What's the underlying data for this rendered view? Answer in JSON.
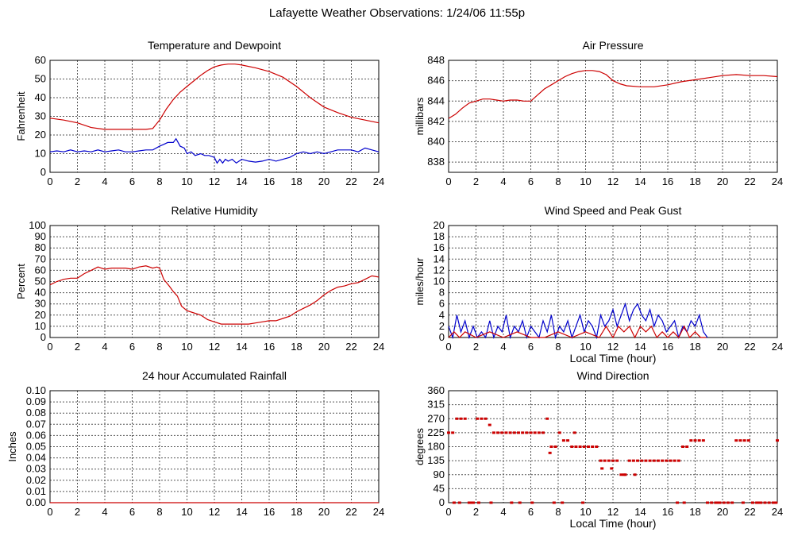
{
  "page_title": "Lafayette Weather Observations: 1/24/06 11:55p",
  "chart_data": [
    {
      "id": "temp",
      "type": "line",
      "title": "Temperature and Dewpoint",
      "ylabel": "Fahrenheit",
      "xlabel": "",
      "xlim": [
        0,
        24
      ],
      "ylim": [
        0,
        60
      ],
      "xticks": [
        0,
        2,
        4,
        6,
        8,
        10,
        12,
        14,
        16,
        18,
        20,
        22,
        24
      ],
      "yticks": [
        0,
        10,
        20,
        30,
        40,
        50,
        60
      ],
      "grid": true,
      "series": [
        {
          "color": "#cc0000",
          "x": [
            0,
            1,
            2,
            3,
            4,
            5,
            6,
            7,
            7.5,
            8,
            8.5,
            9,
            9.5,
            10,
            10.5,
            11,
            11.5,
            12,
            12.5,
            13,
            13.5,
            14,
            15,
            16,
            17,
            18,
            19,
            20,
            21,
            22,
            23,
            24
          ],
          "y": [
            29,
            28,
            26.5,
            24,
            23,
            23,
            23,
            23,
            23.5,
            28,
            34,
            39,
            43,
            46,
            49,
            52,
            54.5,
            56.5,
            57.5,
            58,
            58,
            57.5,
            56,
            54,
            51,
            46,
            40,
            35,
            32,
            29.5,
            28,
            26.5
          ]
        },
        {
          "color": "#0000cc",
          "x": [
            0,
            0.5,
            1,
            1.5,
            2,
            2.5,
            3,
            3.5,
            4,
            4.5,
            5,
            5.5,
            6,
            6.5,
            7,
            7.5,
            8,
            8.3,
            8.6,
            9,
            9.2,
            9.5,
            9.8,
            10,
            10.3,
            10.6,
            11,
            11.3,
            11.6,
            12,
            12.2,
            12.4,
            12.6,
            12.8,
            13,
            13.3,
            13.6,
            14,
            14.5,
            15,
            15.5,
            16,
            16.5,
            17,
            17.5,
            18,
            18.5,
            19,
            19.5,
            20,
            20.5,
            21,
            21.5,
            22,
            22.5,
            23,
            23.5,
            24
          ],
          "y": [
            11,
            11.5,
            11,
            12,
            11,
            11.5,
            11,
            12,
            11,
            11.5,
            12,
            11,
            11,
            11.5,
            12,
            12,
            14,
            15,
            16,
            16,
            18,
            14,
            13,
            10,
            11,
            9,
            10,
            9,
            9,
            8,
            5,
            7,
            5,
            7,
            6,
            7,
            5,
            7,
            6,
            5.5,
            6,
            7,
            6,
            7,
            8,
            10,
            11,
            10,
            11,
            10,
            11,
            12,
            12,
            12,
            11,
            13,
            12,
            11
          ]
        }
      ]
    },
    {
      "id": "pressure",
      "type": "line",
      "title": "Air Pressure",
      "ylabel": "millibars",
      "xlabel": "",
      "xlim": [
        0,
        24
      ],
      "ylim": [
        837,
        848
      ],
      "xticks": [
        0,
        2,
        4,
        6,
        8,
        10,
        12,
        14,
        16,
        18,
        20,
        22,
        24
      ],
      "yticks": [
        838,
        840,
        842,
        844,
        846,
        848
      ],
      "grid": true,
      "series": [
        {
          "color": "#cc0000",
          "x": [
            0,
            0.5,
            1,
            1.5,
            2,
            2.5,
            3,
            3.5,
            4,
            4.5,
            5,
            5.5,
            6,
            6.5,
            7,
            7.5,
            8,
            8.5,
            9,
            9.5,
            10,
            10.5,
            11,
            11.5,
            12,
            12.5,
            13,
            14,
            15,
            16,
            17,
            18,
            19,
            20,
            21,
            22,
            23,
            24
          ],
          "y": [
            842.3,
            842.7,
            843.3,
            843.8,
            844,
            844.2,
            844.2,
            844.1,
            844,
            844.1,
            844.1,
            844,
            844,
            844.6,
            845.2,
            845.6,
            846,
            846.4,
            846.7,
            846.9,
            847,
            847,
            846.9,
            846.6,
            846,
            845.7,
            845.5,
            845.4,
            845.4,
            845.6,
            845.9,
            846.1,
            846.3,
            846.5,
            846.6,
            846.5,
            846.5,
            846.4
          ]
        }
      ]
    },
    {
      "id": "humidity",
      "type": "line",
      "title": "Relative Humidity",
      "ylabel": "Percent",
      "xlabel": "",
      "xlim": [
        0,
        24
      ],
      "ylim": [
        0,
        100
      ],
      "xticks": [
        0,
        2,
        4,
        6,
        8,
        10,
        12,
        14,
        16,
        18,
        20,
        22,
        24
      ],
      "yticks": [
        0,
        10,
        20,
        30,
        40,
        50,
        60,
        70,
        80,
        90,
        100
      ],
      "grid": true,
      "series": [
        {
          "color": "#cc0000",
          "x": [
            0,
            0.5,
            1,
            1.5,
            2,
            2.5,
            3,
            3.5,
            4,
            4.5,
            5,
            5.5,
            6,
            6.5,
            7,
            7.5,
            7.8,
            8,
            8.3,
            8.7,
            9,
            9.3,
            9.6,
            10,
            10.5,
            11,
            11.5,
            12,
            12.5,
            13,
            13.5,
            14,
            14.5,
            15,
            15.5,
            16,
            16.5,
            17,
            17.5,
            18,
            18.5,
            19,
            19.5,
            20,
            20.5,
            21,
            21.5,
            22,
            22.5,
            23,
            23.5,
            24
          ],
          "y": [
            47,
            50,
            52,
            53,
            53,
            57,
            60,
            63,
            61,
            62,
            62,
            62,
            61,
            63,
            64,
            62,
            63,
            62,
            52,
            46,
            41,
            37,
            28,
            24,
            22,
            20,
            16,
            14,
            12,
            12,
            12,
            12,
            12,
            13,
            14,
            15,
            15,
            17,
            19,
            23,
            26,
            29,
            33,
            38,
            42,
            45,
            46,
            48,
            49,
            52,
            55,
            54
          ]
        }
      ]
    },
    {
      "id": "wind",
      "type": "line",
      "title": "Wind Speed and Peak Gust",
      "ylabel": "miles/hour",
      "xlabel": "Local Time (hour)",
      "xlim": [
        0,
        24
      ],
      "ylim": [
        0,
        20
      ],
      "xticks": [
        0,
        2,
        4,
        6,
        8,
        10,
        12,
        14,
        16,
        18,
        20,
        22,
        24
      ],
      "yticks": [
        0,
        2,
        4,
        6,
        8,
        10,
        12,
        14,
        16,
        18,
        20
      ],
      "grid": true,
      "series": [
        {
          "color": "#0000cc",
          "x": [
            0,
            0.3,
            0.6,
            0.9,
            1.2,
            1.5,
            1.8,
            2.1,
            2.4,
            2.7,
            3,
            3.3,
            3.6,
            3.9,
            4.2,
            4.5,
            4.8,
            5.1,
            5.4,
            5.7,
            6,
            6.3,
            6.6,
            6.9,
            7.2,
            7.5,
            7.8,
            8.1,
            8.4,
            8.7,
            9,
            9.3,
            9.6,
            9.9,
            10.2,
            10.5,
            10.8,
            11.1,
            11.4,
            11.7,
            12,
            12.3,
            12.6,
            12.9,
            13.2,
            13.5,
            13.8,
            14.1,
            14.4,
            14.7,
            15,
            15.3,
            15.6,
            15.9,
            16.2,
            16.5,
            16.8,
            17.1,
            17.4,
            17.7,
            18,
            18.3,
            18.6,
            18.9
          ],
          "y": [
            2,
            0,
            4,
            1,
            3,
            0,
            2,
            0,
            1,
            0,
            3,
            0,
            2,
            1,
            4,
            0,
            2,
            1,
            3,
            0,
            2,
            1,
            0,
            3,
            1,
            4,
            0,
            2,
            1,
            3,
            0,
            2,
            4,
            1,
            3,
            2,
            0,
            4,
            2,
            3,
            5,
            2,
            4,
            6,
            3,
            5,
            6,
            4,
            3,
            5,
            2,
            4,
            3,
            1,
            2,
            3,
            0,
            2,
            1,
            3,
            2,
            4,
            1,
            0
          ]
        },
        {
          "color": "#cc0000",
          "x": [
            0,
            0.4,
            0.8,
            1.2,
            2,
            3,
            4,
            5,
            6,
            7,
            8,
            9,
            10,
            11,
            11.5,
            12,
            12.4,
            12.8,
            13.2,
            13.6,
            14,
            14.4,
            14.8,
            15.2,
            15.6,
            16,
            16.4,
            16.8,
            17.2,
            17.6,
            18,
            18.4,
            18.8
          ],
          "y": [
            0,
            1,
            0,
            1,
            0,
            1,
            0,
            1,
            0,
            0,
            1,
            0,
            1,
            0,
            2,
            0,
            2,
            1,
            2,
            0,
            2,
            1,
            2,
            0,
            1,
            0,
            1,
            0,
            2,
            0,
            1,
            0,
            0
          ]
        }
      ]
    },
    {
      "id": "rain",
      "type": "line",
      "title": "24 hour Accumulated Rainfall",
      "ylabel": "Inches",
      "xlabel": "",
      "xlim": [
        0,
        24
      ],
      "ylim": [
        0,
        0.1
      ],
      "xticks": [
        0,
        2,
        4,
        6,
        8,
        10,
        12,
        14,
        16,
        18,
        20,
        22,
        24
      ],
      "yticks": [
        "0.00",
        "0.01",
        "0.02",
        "0.03",
        "0.04",
        "0.05",
        "0.06",
        "0.07",
        "0.08",
        "0.09",
        "0.10"
      ],
      "grid": true,
      "series": [
        {
          "color": "#cc0000",
          "x": [
            0,
            24
          ],
          "y": [
            0,
            0
          ]
        }
      ]
    },
    {
      "id": "direction",
      "type": "scatter",
      "title": "Wind Direction",
      "ylabel": "degrees",
      "xlabel": "Local Time (hour)",
      "xlim": [
        0,
        24
      ],
      "ylim": [
        0,
        360
      ],
      "xticks": [
        0,
        2,
        4,
        6,
        8,
        10,
        12,
        14,
        16,
        18,
        20,
        22,
        24
      ],
      "yticks": [
        0,
        45,
        90,
        135,
        180,
        225,
        270,
        315,
        360
      ],
      "grid": true,
      "series": [
        {
          "color": "#cc0000",
          "x": [
            0,
            0.3,
            0.6,
            0.9,
            1.2,
            1.5,
            1.8,
            2.1,
            2.4,
            2.7,
            3,
            3.3,
            3.6,
            3.9,
            4.2,
            4.5,
            4.8,
            5.1,
            5.4,
            5.7,
            6,
            6.3,
            6.6,
            6.9,
            7.2,
            7.5,
            7.8,
            8.1,
            8.4,
            8.7,
            9,
            9.3,
            9.6,
            9.9,
            10.2,
            10.5,
            10.8,
            11.1,
            11.4,
            11.7,
            12,
            12.3,
            12.6,
            12.9,
            13.2,
            13.5,
            13.8,
            14.1,
            14.4,
            14.7,
            15,
            15.3,
            15.6,
            15.9,
            16.2,
            16.5,
            16.8,
            17.1,
            17.4,
            17.7,
            18,
            18.3,
            18.6,
            18.9,
            19.2,
            19.5,
            19.8,
            20.1,
            20.4,
            20.7,
            21,
            21.3,
            21.6,
            21.9,
            22.2,
            22.5,
            22.8,
            23.1,
            23.4,
            23.7,
            24,
            0.4,
            0.8,
            1.6,
            2.2,
            3.1,
            4.6,
            5.2,
            6.1,
            7.4,
            7.7,
            8.3,
            9.2,
            9.8,
            11.2,
            11.9,
            12.8,
            13.6,
            16.7,
            17.2,
            19.6,
            21.5,
            22.7,
            23.9
          ],
          "y": [
            225,
            225,
            270,
            270,
            270,
            0,
            0,
            270,
            270,
            270,
            250,
            225,
            225,
            225,
            225,
            225,
            225,
            225,
            225,
            225,
            225,
            225,
            225,
            225,
            270,
            180,
            180,
            225,
            200,
            200,
            180,
            180,
            180,
            180,
            180,
            180,
            180,
            135,
            135,
            135,
            135,
            135,
            90,
            90,
            135,
            135,
            135,
            135,
            135,
            135,
            135,
            135,
            135,
            135,
            135,
            135,
            135,
            180,
            180,
            200,
            200,
            200,
            200,
            0,
            0,
            0,
            0,
            0,
            0,
            0,
            200,
            200,
            200,
            200,
            0,
            0,
            0,
            0,
            0,
            0,
            200,
            0,
            0,
            0,
            0,
            0,
            0,
            0,
            0,
            160,
            0,
            0,
            225,
            0,
            110,
            110,
            90,
            90,
            0,
            0,
            0,
            0,
            0,
            0
          ]
        }
      ]
    }
  ]
}
